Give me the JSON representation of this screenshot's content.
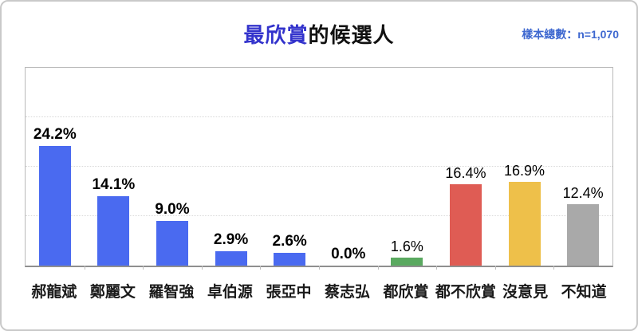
{
  "header": {
    "title_highlight": "最欣賞",
    "title_rest": "的候選人",
    "sample_label": "樣本總數：n=1,070"
  },
  "colors": {
    "title_highlight": "#3333cc",
    "title_rest": "#111111",
    "sample_text": "#3e68d0",
    "bar_blue": "#4a6af0",
    "bar_green": "#5aa960",
    "bar_red": "#df5c54",
    "bar_yellow": "#eec04a",
    "bar_gray": "#a9a9a9"
  },
  "chart_data": {
    "type": "bar",
    "title": "最欣賞的候選人",
    "subtitle": "樣本總數：n=1,070",
    "categories": [
      "郝龍斌",
      "鄭麗文",
      "羅智強",
      "卓伯源",
      "張亞中",
      "蔡志弘",
      "都欣賞",
      "都不欣賞",
      "沒意見",
      "不知道"
    ],
    "values": [
      24.2,
      14.1,
      9.0,
      2.9,
      2.6,
      0.0,
      1.6,
      16.4,
      16.9,
      12.4
    ],
    "value_labels": [
      "24.2%",
      "14.1%",
      "9.0%",
      "2.9%",
      "2.6%",
      "0.0%",
      "1.6%",
      "16.4%",
      "16.9%",
      "12.4%"
    ],
    "unit": "%",
    "xlabel": "",
    "ylabel": "",
    "ylim": [
      0,
      40
    ],
    "gridlines": [
      10,
      20,
      30
    ],
    "grid": "dotted horizontal",
    "legend": "none",
    "bars": [
      {
        "label": "郝龍斌",
        "value": 24.2,
        "display": "24.2%",
        "color": "#4a6af0",
        "value_label_bold": true
      },
      {
        "label": "鄭麗文",
        "value": 14.1,
        "display": "14.1%",
        "color": "#4a6af0",
        "value_label_bold": true
      },
      {
        "label": "羅智強",
        "value": 9.0,
        "display": "9.0%",
        "color": "#4a6af0",
        "value_label_bold": true
      },
      {
        "label": "卓伯源",
        "value": 2.9,
        "display": "2.9%",
        "color": "#4a6af0",
        "value_label_bold": true
      },
      {
        "label": "張亞中",
        "value": 2.6,
        "display": "2.6%",
        "color": "#4a6af0",
        "value_label_bold": true
      },
      {
        "label": "蔡志弘",
        "value": 0.0,
        "display": "0.0%",
        "color": "#4a6af0",
        "value_label_bold": true
      },
      {
        "label": "都欣賞",
        "value": 1.6,
        "display": "1.6%",
        "color": "#5aa960",
        "value_label_bold": false
      },
      {
        "label": "都不欣賞",
        "value": 16.4,
        "display": "16.4%",
        "color": "#df5c54",
        "value_label_bold": false
      },
      {
        "label": "沒意見",
        "value": 16.9,
        "display": "16.9%",
        "color": "#eec04a",
        "value_label_bold": false
      },
      {
        "label": "不知道",
        "value": 12.4,
        "display": "12.4%",
        "color": "#a9a9a9",
        "value_label_bold": false
      }
    ]
  }
}
